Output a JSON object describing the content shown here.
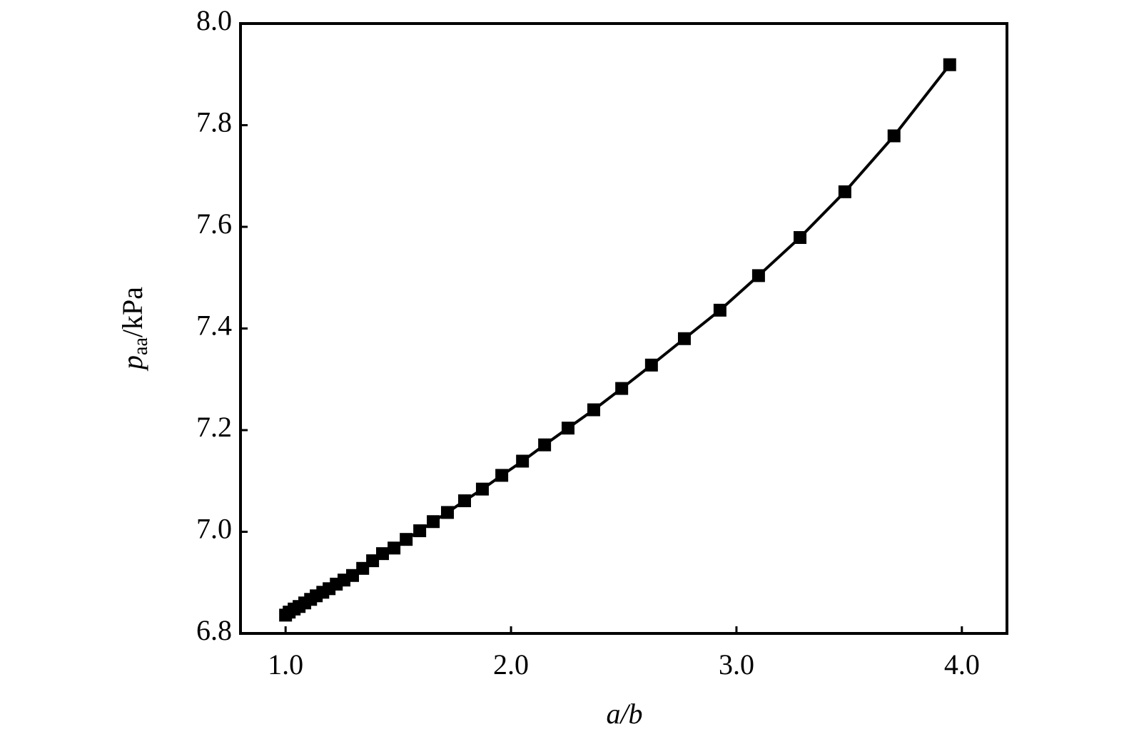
{
  "chart_data": {
    "type": "line",
    "color": "#000000",
    "marker": "square",
    "x_label": "a/b",
    "y_label": {
      "symbol": "p",
      "subscript": "aa",
      "unit": "/kPa"
    },
    "x": [
      1.0,
      1.016,
      1.038,
      1.06,
      1.085,
      1.111,
      1.136,
      1.165,
      1.193,
      1.225,
      1.259,
      1.297,
      1.342,
      1.386,
      1.43,
      1.481,
      1.535,
      1.595,
      1.655,
      1.718,
      1.794,
      1.873,
      1.959,
      2.051,
      2.149,
      2.253,
      2.367,
      2.491,
      2.623,
      2.769,
      2.927,
      3.098,
      3.282,
      3.481,
      3.699,
      3.946
    ],
    "values": [
      6.836,
      6.842,
      6.848,
      6.853,
      6.86,
      6.867,
      6.874,
      6.881,
      6.888,
      6.897,
      6.905,
      6.914,
      6.928,
      6.943,
      6.957,
      6.968,
      6.985,
      7.002,
      7.02,
      7.038,
      7.061,
      7.084,
      7.111,
      7.139,
      7.171,
      7.204,
      7.24,
      7.282,
      7.328,
      7.38,
      7.436,
      7.504,
      7.579,
      7.669,
      7.779,
      7.919
    ],
    "xlim": [
      0.8,
      4.2
    ],
    "xticks": [
      {
        "value": 1,
        "label": "1.0"
      },
      {
        "value": 2,
        "label": "2.0"
      },
      {
        "value": 3,
        "label": "3.0"
      },
      {
        "value": 4,
        "label": "4.0"
      }
    ],
    "ylim": [
      6.8,
      8.0
    ],
    "yticks": [
      6.8,
      {
        "value": 7,
        "label": "7.0"
      },
      7.2,
      7.4,
      7.6,
      7.8,
      {
        "value": 8,
        "label": "8.0"
      }
    ]
  }
}
